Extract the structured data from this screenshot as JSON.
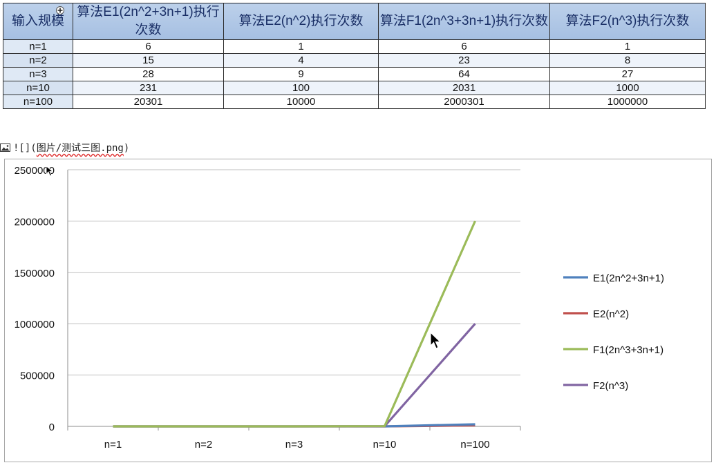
{
  "table": {
    "headers": [
      "输入规模",
      "算法E1(2n^2+3n+1)执行次数",
      "算法E2(n^2)执行次数",
      "算法F1(2n^3+3n+1)执行次数",
      "算法F2(n^3)执行次数"
    ],
    "rows": [
      [
        "n=1",
        "6",
        "1",
        "6",
        "1"
      ],
      [
        "n=2",
        "15",
        "4",
        "23",
        "8"
      ],
      [
        "n=3",
        "28",
        "9",
        "64",
        "27"
      ],
      [
        "n=10",
        "231",
        "100",
        "2031",
        "1000"
      ],
      [
        "n=100",
        "20301",
        "10000",
        "2000301",
        "1000000"
      ]
    ]
  },
  "markdown_line": {
    "prefix": "![](",
    "path": "图片/测试三图.png",
    "suffix": ")"
  },
  "colors": {
    "E1": "#4f81bd",
    "E2": "#c0504d",
    "F1": "#9bbb59",
    "F2": "#8064a2",
    "header_bg": "#b8cde8",
    "grid": "#bfbfbf"
  },
  "chart_data": {
    "type": "line",
    "categories": [
      "n=1",
      "n=2",
      "n=3",
      "n=10",
      "n=100"
    ],
    "series": [
      {
        "name": "E1(2n^2+3n+1)",
        "values": [
          6,
          15,
          28,
          231,
          20301
        ]
      },
      {
        "name": "E2(n^2)",
        "values": [
          1,
          4,
          9,
          100,
          10000
        ]
      },
      {
        "name": "F1(2n^3+3n+1)",
        "values": [
          6,
          23,
          64,
          2031,
          2000301
        ]
      },
      {
        "name": "F2(n^3)",
        "values": [
          1,
          8,
          27,
          1000,
          1000000
        ]
      }
    ],
    "yticks": [
      "0",
      "500000",
      "1000000",
      "1500000",
      "2000000",
      "2500000"
    ],
    "ylim": [
      0,
      2500000
    ],
    "grid": true,
    "legend": "right",
    "title": "",
    "xlabel": "",
    "ylabel": ""
  }
}
